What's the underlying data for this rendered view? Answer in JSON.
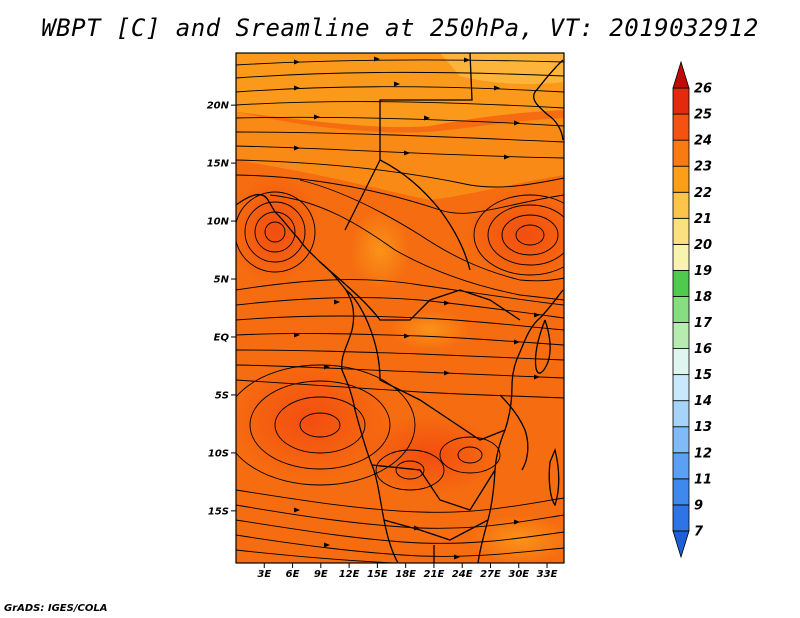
{
  "title": "WBPT [C] and Sreamline at 250hPa, VT: 2019032912",
  "credit": "GrADS: IGES/COLA",
  "map": {
    "lon_labels": [
      "3E",
      "6E",
      "9E",
      "12E",
      "15E",
      "18E",
      "21E",
      "24E",
      "27E",
      "30E",
      "33E"
    ],
    "lat_labels": [
      "20N",
      "15N",
      "10N",
      "5N",
      "EQ",
      "5S",
      "10S",
      "15S"
    ],
    "lon_range": [
      0,
      34.8
    ],
    "lat_range": [
      -19.5,
      24.5
    ]
  },
  "colorbar": {
    "levels": [
      "7",
      "9",
      "11",
      "12",
      "13",
      "14",
      "15",
      "16",
      "17",
      "18",
      "19",
      "20",
      "21",
      "22",
      "23",
      "24",
      "25",
      "26"
    ],
    "colors": [
      "#1e5fd6",
      "#2f74e6",
      "#3f89ee",
      "#5ba0f3",
      "#80bbf7",
      "#a6d3fa",
      "#c8e8fb",
      "#dff5f0",
      "#b7ecb0",
      "#86de80",
      "#4fc94e",
      "#f9f3b0",
      "#fbe080",
      "#fcc44a",
      "#fb9e18",
      "#f97a10",
      "#f35212",
      "#e32a0e",
      "#c00a08"
    ]
  }
}
